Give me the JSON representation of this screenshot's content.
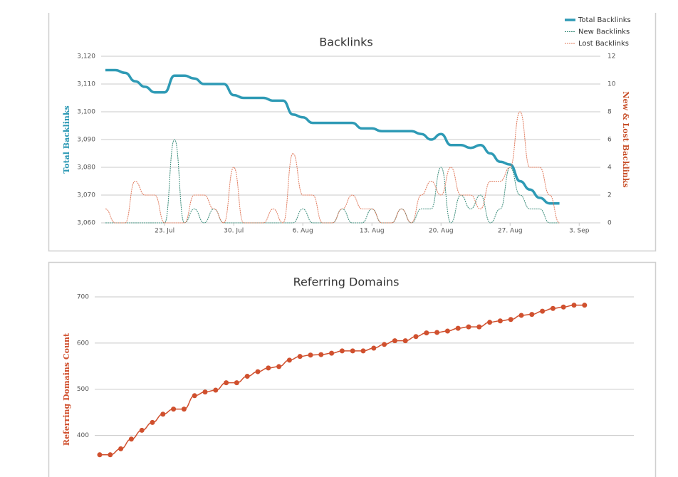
{
  "chart_data": [
    {
      "type": "line",
      "title": "Backlinks",
      "categories": [
        null,
        null,
        null,
        null,
        null,
        null,
        "23. Jul",
        null,
        null,
        null,
        null,
        null,
        null,
        "30. Jul",
        null,
        null,
        null,
        null,
        null,
        null,
        "6. Aug",
        null,
        null,
        null,
        null,
        null,
        null,
        "13. Aug",
        null,
        null,
        null,
        null,
        null,
        null,
        "20. Aug",
        null,
        null,
        null,
        null,
        null,
        null,
        "27. Aug",
        null,
        null,
        null,
        null,
        null,
        null,
        "3. Sep"
      ],
      "y_label": "Total Backlinks",
      "y2_label": "New & Lost Backlinks",
      "ylim": [
        3060,
        3120
      ],
      "yticks": [
        {
          "value": 3060,
          "label": "3,060"
        },
        {
          "value": 3070,
          "label": "3,070"
        },
        {
          "value": 3080,
          "label": "3,080"
        },
        {
          "value": 3090,
          "label": "3,090"
        },
        {
          "value": 3100,
          "label": "3,100"
        },
        {
          "value": 3110,
          "label": "3,110"
        },
        {
          "value": 3120,
          "label": "3,120"
        }
      ],
      "y2lim": [
        0,
        12
      ],
      "y2ticks": [
        0,
        2,
        4,
        6,
        8,
        10,
        12
      ],
      "grid": true,
      "legend": "upper right",
      "series": [
        {
          "name": "Total Backlinks",
          "color": "#2e9ab5",
          "axis": "y",
          "dashed": false,
          "values": [
            3115,
            3115,
            3114,
            3111,
            3109,
            3107,
            3107,
            3113,
            3113,
            3112,
            3110,
            3110,
            3110,
            3106,
            3105,
            3105,
            3105,
            3104,
            3104,
            3099,
            3098,
            3096,
            3096,
            3096,
            3096,
            3096,
            3094,
            3094,
            3093,
            3093,
            3093,
            3093,
            3092,
            3090,
            3092,
            3088,
            3088,
            3087,
            3088,
            3085,
            3082,
            3081,
            3075,
            3072,
            3069,
            3067,
            3067,
            null,
            null
          ]
        },
        {
          "name": "New Backlinks",
          "color": "#3a8c7a",
          "axis": "y2",
          "dashed": true,
          "values": [
            0,
            0,
            0,
            0,
            0,
            0,
            0,
            6,
            0,
            1,
            0,
            1,
            0,
            0,
            0,
            0,
            0,
            0,
            0,
            0,
            1,
            0,
            0,
            0,
            1,
            0,
            0,
            1,
            0,
            0,
            1,
            0,
            1,
            1,
            4,
            0,
            2,
            1,
            2,
            0,
            1,
            4,
            2,
            1,
            1,
            0,
            0,
            null,
            null
          ]
        },
        {
          "name": "Lost Backlinks",
          "color": "#e0785a",
          "axis": "y2",
          "dashed": true,
          "values": [
            1,
            0,
            0,
            3,
            2,
            2,
            0,
            0,
            0,
            2,
            2,
            1,
            0,
            4,
            0,
            0,
            0,
            1,
            0,
            5,
            2,
            2,
            0,
            0,
            1,
            2,
            1,
            1,
            0,
            0,
            1,
            0,
            2,
            3,
            2,
            4,
            2,
            2,
            1,
            3,
            3,
            4,
            8,
            4,
            4,
            2,
            0,
            null,
            null
          ]
        }
      ]
    },
    {
      "type": "line",
      "title": "Referring Domains",
      "y_label": "Referring Domains Count",
      "color": "#d0502e",
      "markers": true,
      "grid": true,
      "ylim": [
        350,
        700
      ],
      "yticks": [
        400,
        500,
        600,
        700
      ],
      "values": [
        358,
        358,
        371,
        392,
        411,
        428,
        446,
        457,
        457,
        486,
        494,
        498,
        514,
        514,
        528,
        538,
        546,
        549,
        563,
        571,
        574,
        575,
        578,
        583,
        583,
        583,
        589,
        597,
        605,
        605,
        614,
        622,
        623,
        626,
        632,
        635,
        635,
        645,
        648,
        651,
        660,
        662,
        669,
        675,
        678,
        682,
        682
      ]
    }
  ]
}
